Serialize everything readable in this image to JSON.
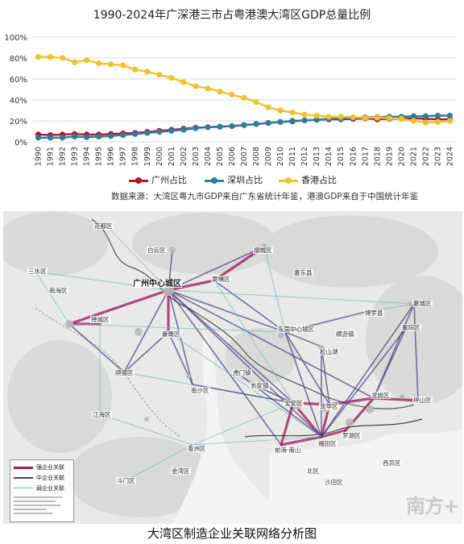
{
  "chart_data": {
    "type": "line",
    "title": "1990-2024年广深港三市占粤港澳大湾区GDP总量比例",
    "xlabel": "",
    "ylabel": "",
    "ylim": [
      0,
      100
    ],
    "grid": true,
    "legend_position": "bottom",
    "x": [
      "1990",
      "1991",
      "1992",
      "1993",
      "1994",
      "1995",
      "1996",
      "1997",
      "1998",
      "1999",
      "2000",
      "2001",
      "2002",
      "2003",
      "2004",
      "2005",
      "2006",
      "2007",
      "2008",
      "2009",
      "2010",
      "2011",
      "2012",
      "2013",
      "2014",
      "2015",
      "2016",
      "2017",
      "2018",
      "2019",
      "2020",
      "2021",
      "2022",
      "2023",
      "2024"
    ],
    "y_ticks": [
      "0%",
      "20%",
      "40%",
      "60%",
      "80%",
      "100%"
    ],
    "series": [
      {
        "name": "广州占比",
        "color": "#b5172d",
        "values": [
          7,
          6.5,
          7,
          7.5,
          7,
          7,
          7.5,
          8,
          8.5,
          9.5,
          10.5,
          11.5,
          12.5,
          13.5,
          14,
          14.5,
          15,
          16,
          17,
          18,
          19,
          19.5,
          20.5,
          21,
          21.5,
          21.5,
          22,
          22.5,
          21.5,
          22,
          22,
          22.5,
          22,
          21.5,
          21.5
        ]
      },
      {
        "name": "深圳占比",
        "color": "#2d7e9c",
        "values": [
          4,
          4,
          4,
          5,
          4.5,
          5,
          5.5,
          6.5,
          7.5,
          8.5,
          9.5,
          10.5,
          11.5,
          13,
          14,
          14.5,
          15,
          16,
          17,
          18,
          19,
          20,
          20.5,
          21,
          22,
          22,
          23,
          23.5,
          23.5,
          24,
          24,
          24.5,
          24.5,
          25,
          25
        ]
      },
      {
        "name": "香港占比",
        "color": "#f2c12e",
        "values": [
          81,
          81,
          80,
          76,
          78,
          75,
          74,
          73,
          69,
          67,
          64,
          61,
          57,
          53,
          51,
          48,
          45,
          42,
          38,
          33,
          30,
          28,
          26,
          25,
          24,
          24,
          23.5,
          23,
          23,
          22.5,
          22,
          20,
          18.5,
          19,
          20
        ]
      }
    ]
  },
  "source_note": "数据来源：大湾区粤九市GDP来自广东省统计年鉴，港澳GDP来自于中国统计年鉴",
  "map": {
    "districts": [
      "花都区",
      "白云区",
      "增城区",
      "广州中心城区",
      "黄埔区",
      "番禺区",
      "南海区",
      "禅城区",
      "顺德区",
      "南沙区",
      "江海区",
      "东莞中心城区",
      "博罗县",
      "惠城区",
      "惠阳区",
      "惠东县",
      "宝安区",
      "龙华区",
      "龙岗区",
      "坪山区",
      "福田区",
      "罗湖区",
      "前海·南山",
      "长安镇",
      "虎门镇",
      "松山湖",
      "横沥镇",
      "三水区",
      "香洲区",
      "金湾区",
      "斗门区",
      "北区",
      "沙田区",
      "西贡区"
    ],
    "legend": [
      "强企业关联",
      "中企业关联",
      "弱企业关联"
    ],
    "legend_colors": [
      "#9b1a5a",
      "#4a3d78",
      "#6cb5c3"
    ],
    "watermark": "南方+"
  },
  "caption": "大湾区制造企业关联网络分析图"
}
